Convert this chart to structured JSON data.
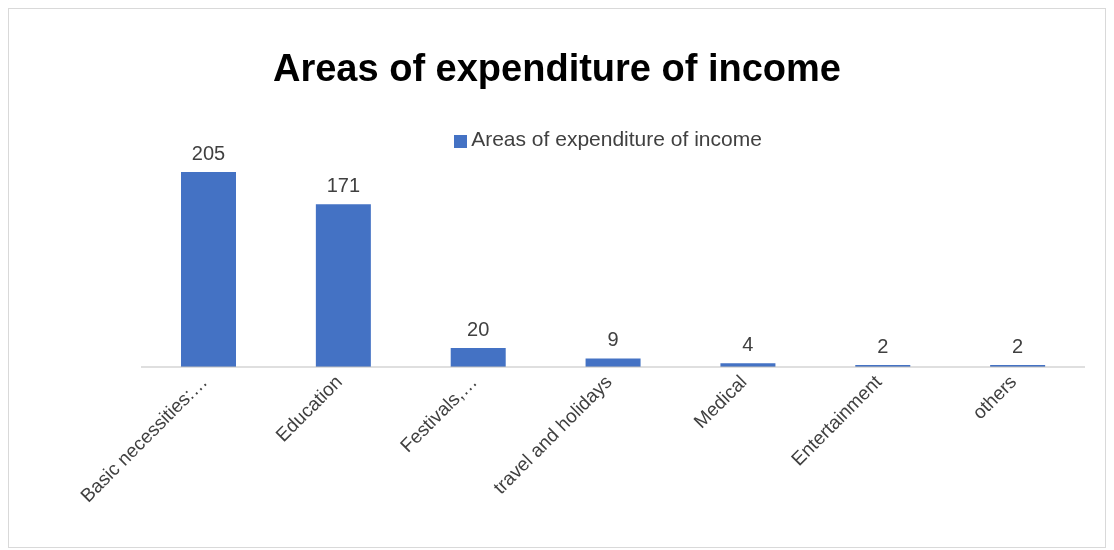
{
  "chart_data": {
    "type": "bar",
    "title": "Areas of expenditure of income",
    "categories": [
      "Basic necessities:…",
      "Education",
      "Festivals,…",
      "travel and holidays",
      "Medical",
      "Entertainment",
      "others"
    ],
    "series": [
      {
        "name": "Areas of expenditure of income",
        "color": "#4472c4",
        "values": [
          205,
          171,
          20,
          9,
          4,
          2,
          2
        ]
      }
    ],
    "data_labels": true,
    "legend": "top",
    "grid": false
  }
}
